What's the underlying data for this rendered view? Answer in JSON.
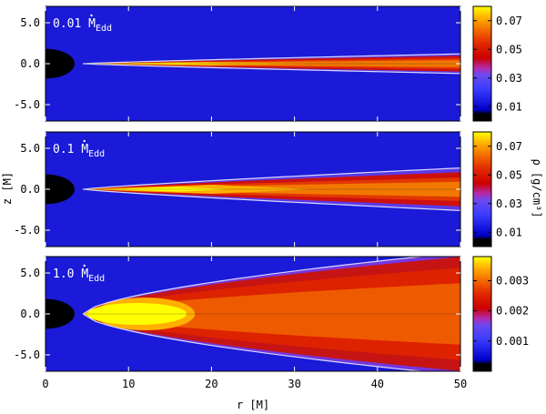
{
  "chart_data": {
    "type": "heatmap",
    "shared_x_axis": {
      "label": "r [M]",
      "range": [
        0,
        50
      ],
      "ticks": [
        0,
        10,
        20,
        30,
        40,
        50
      ],
      "tick_labels": [
        "0",
        "10",
        "20",
        "30",
        "40",
        "50"
      ]
    },
    "shared_y_axis": {
      "label": "z [M]",
      "range": [
        -7,
        7
      ],
      "ticks": [
        5,
        0,
        -5
      ],
      "tick_labels": [
        "5.0",
        "0.0",
        "-5.0"
      ]
    },
    "colorbar_label": "ρ [g/cm³]",
    "panels": [
      {
        "annotation": "0.01",
        "annotation_mdot": "M",
        "annotation_sub": "Edd",
        "disk_inner_r": 4.5,
        "half_thickness_at_r50": 1.2,
        "colorbar": {
          "range": [
            0,
            0.08
          ],
          "ticks": [
            0.01,
            0.03,
            0.05,
            0.07
          ],
          "tick_labels": [
            "0.01",
            "0.03",
            "0.05",
            "0.07"
          ]
        }
      },
      {
        "annotation": "0.1",
        "annotation_mdot": "M",
        "annotation_sub": "Edd",
        "disk_inner_r": 4.5,
        "half_thickness_at_r50": 2.6,
        "colorbar": {
          "range": [
            0,
            0.08
          ],
          "ticks": [
            0.01,
            0.03,
            0.05,
            0.07
          ],
          "tick_labels": [
            "0.01",
            "0.03",
            "0.05",
            "0.07"
          ]
        }
      },
      {
        "annotation": "1.0",
        "annotation_mdot": "M",
        "annotation_sub": "Edd",
        "disk_inner_r": 4.5,
        "half_thickness_at_r50": 7.5,
        "colorbar": {
          "range": [
            0,
            0.0038
          ],
          "ticks": [
            0.001,
            0.002,
            0.003
          ],
          "tick_labels": [
            "0.001",
            "0.002",
            "0.003"
          ]
        }
      }
    ],
    "colormap": [
      "#000000",
      "#0000cc",
      "#4848ff",
      "#7f3fd0",
      "#cc0000",
      "#ee5a00",
      "#ffa500",
      "#ffff00"
    ],
    "background_color": "#1a1ad8",
    "black_hole_color": "#000000",
    "grid": false
  }
}
